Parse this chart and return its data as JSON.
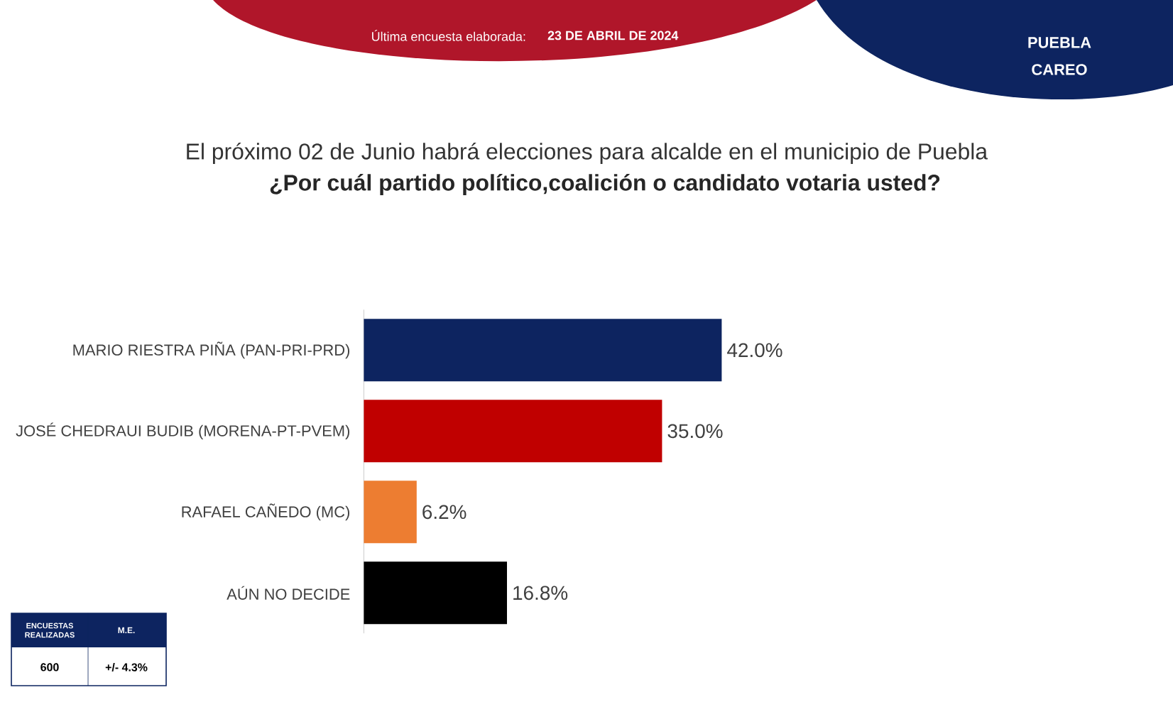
{
  "chart_data": {
    "type": "bar",
    "orientation": "horizontal",
    "title": "El próximo 02 de Junio habrá elecciones para alcalde en el municipio de Puebla",
    "subtitle": "¿Por cuál partido político,coalición o candidato votaria usted?",
    "categories": [
      "MARIO RIESTRA PIÑA (PAN-PRI-PRD)",
      "JOSÉ CHEDRAUI BUDIB (MORENA-PT-PVEM)",
      "RAFAEL CAÑEDO (MC)",
      "AÚN NO DECIDE"
    ],
    "values": [
      42.0,
      35.0,
      6.2,
      16.8
    ],
    "colors": [
      "#0d2460",
      "#c00000",
      "#ed7d31",
      "#000000"
    ],
    "value_labels": [
      "42.0%",
      "35.0%",
      "6.2%",
      "16.8%"
    ],
    "annotations": [
      "Última encuesta elaborada:",
      "23 DE ABRIL DE 2024",
      "PUEBLA",
      "CAREO",
      "ENCUESTAS REALIZADAS",
      "M.E.",
      "600",
      "+/- 4.3%"
    ]
  }
}
